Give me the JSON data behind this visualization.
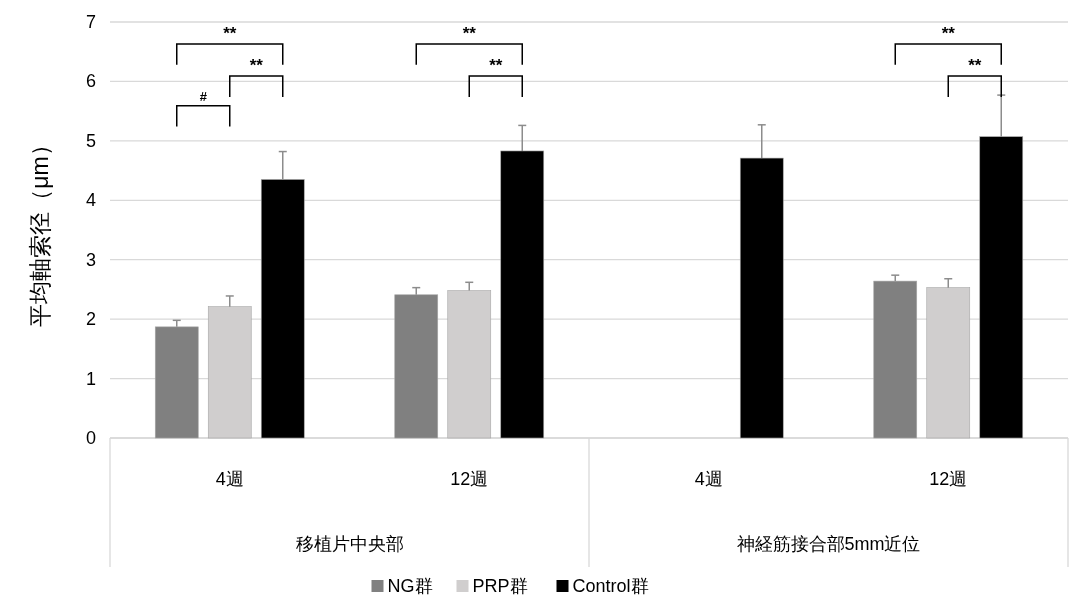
{
  "chart_data": {
    "type": "bar",
    "ylabel": "平均軸索径（μm）",
    "categories": [
      "4週",
      "12週",
      "4週",
      "12週"
    ],
    "series": [
      {
        "name": "NG群",
        "color": "#808080",
        "values": [
          1.87,
          2.41,
          null,
          2.64
        ],
        "errors": [
          0.11,
          0.12,
          null,
          0.1
        ]
      },
      {
        "name": "PRP群",
        "color": "#d0cece",
        "values": [
          2.21,
          2.48,
          null,
          2.53
        ],
        "errors": [
          0.18,
          0.14,
          null,
          0.15
        ]
      },
      {
        "name": "Control群",
        "color": "#000000",
        "values": [
          4.35,
          4.83,
          4.71,
          5.07
        ],
        "errors": [
          0.47,
          0.43,
          0.56,
          0.7
        ]
      }
    ],
    "ylim": [
      0,
      7
    ],
    "yticks": [
      0,
      1,
      2,
      3,
      4,
      5,
      6,
      7
    ],
    "grid": "y",
    "legend": "bottom",
    "annotations": [
      "移植片中央部",
      "神経筋接合部5mm近位",
      "**",
      "**",
      "#",
      "**",
      "**",
      "**",
      "**"
    ]
  }
}
